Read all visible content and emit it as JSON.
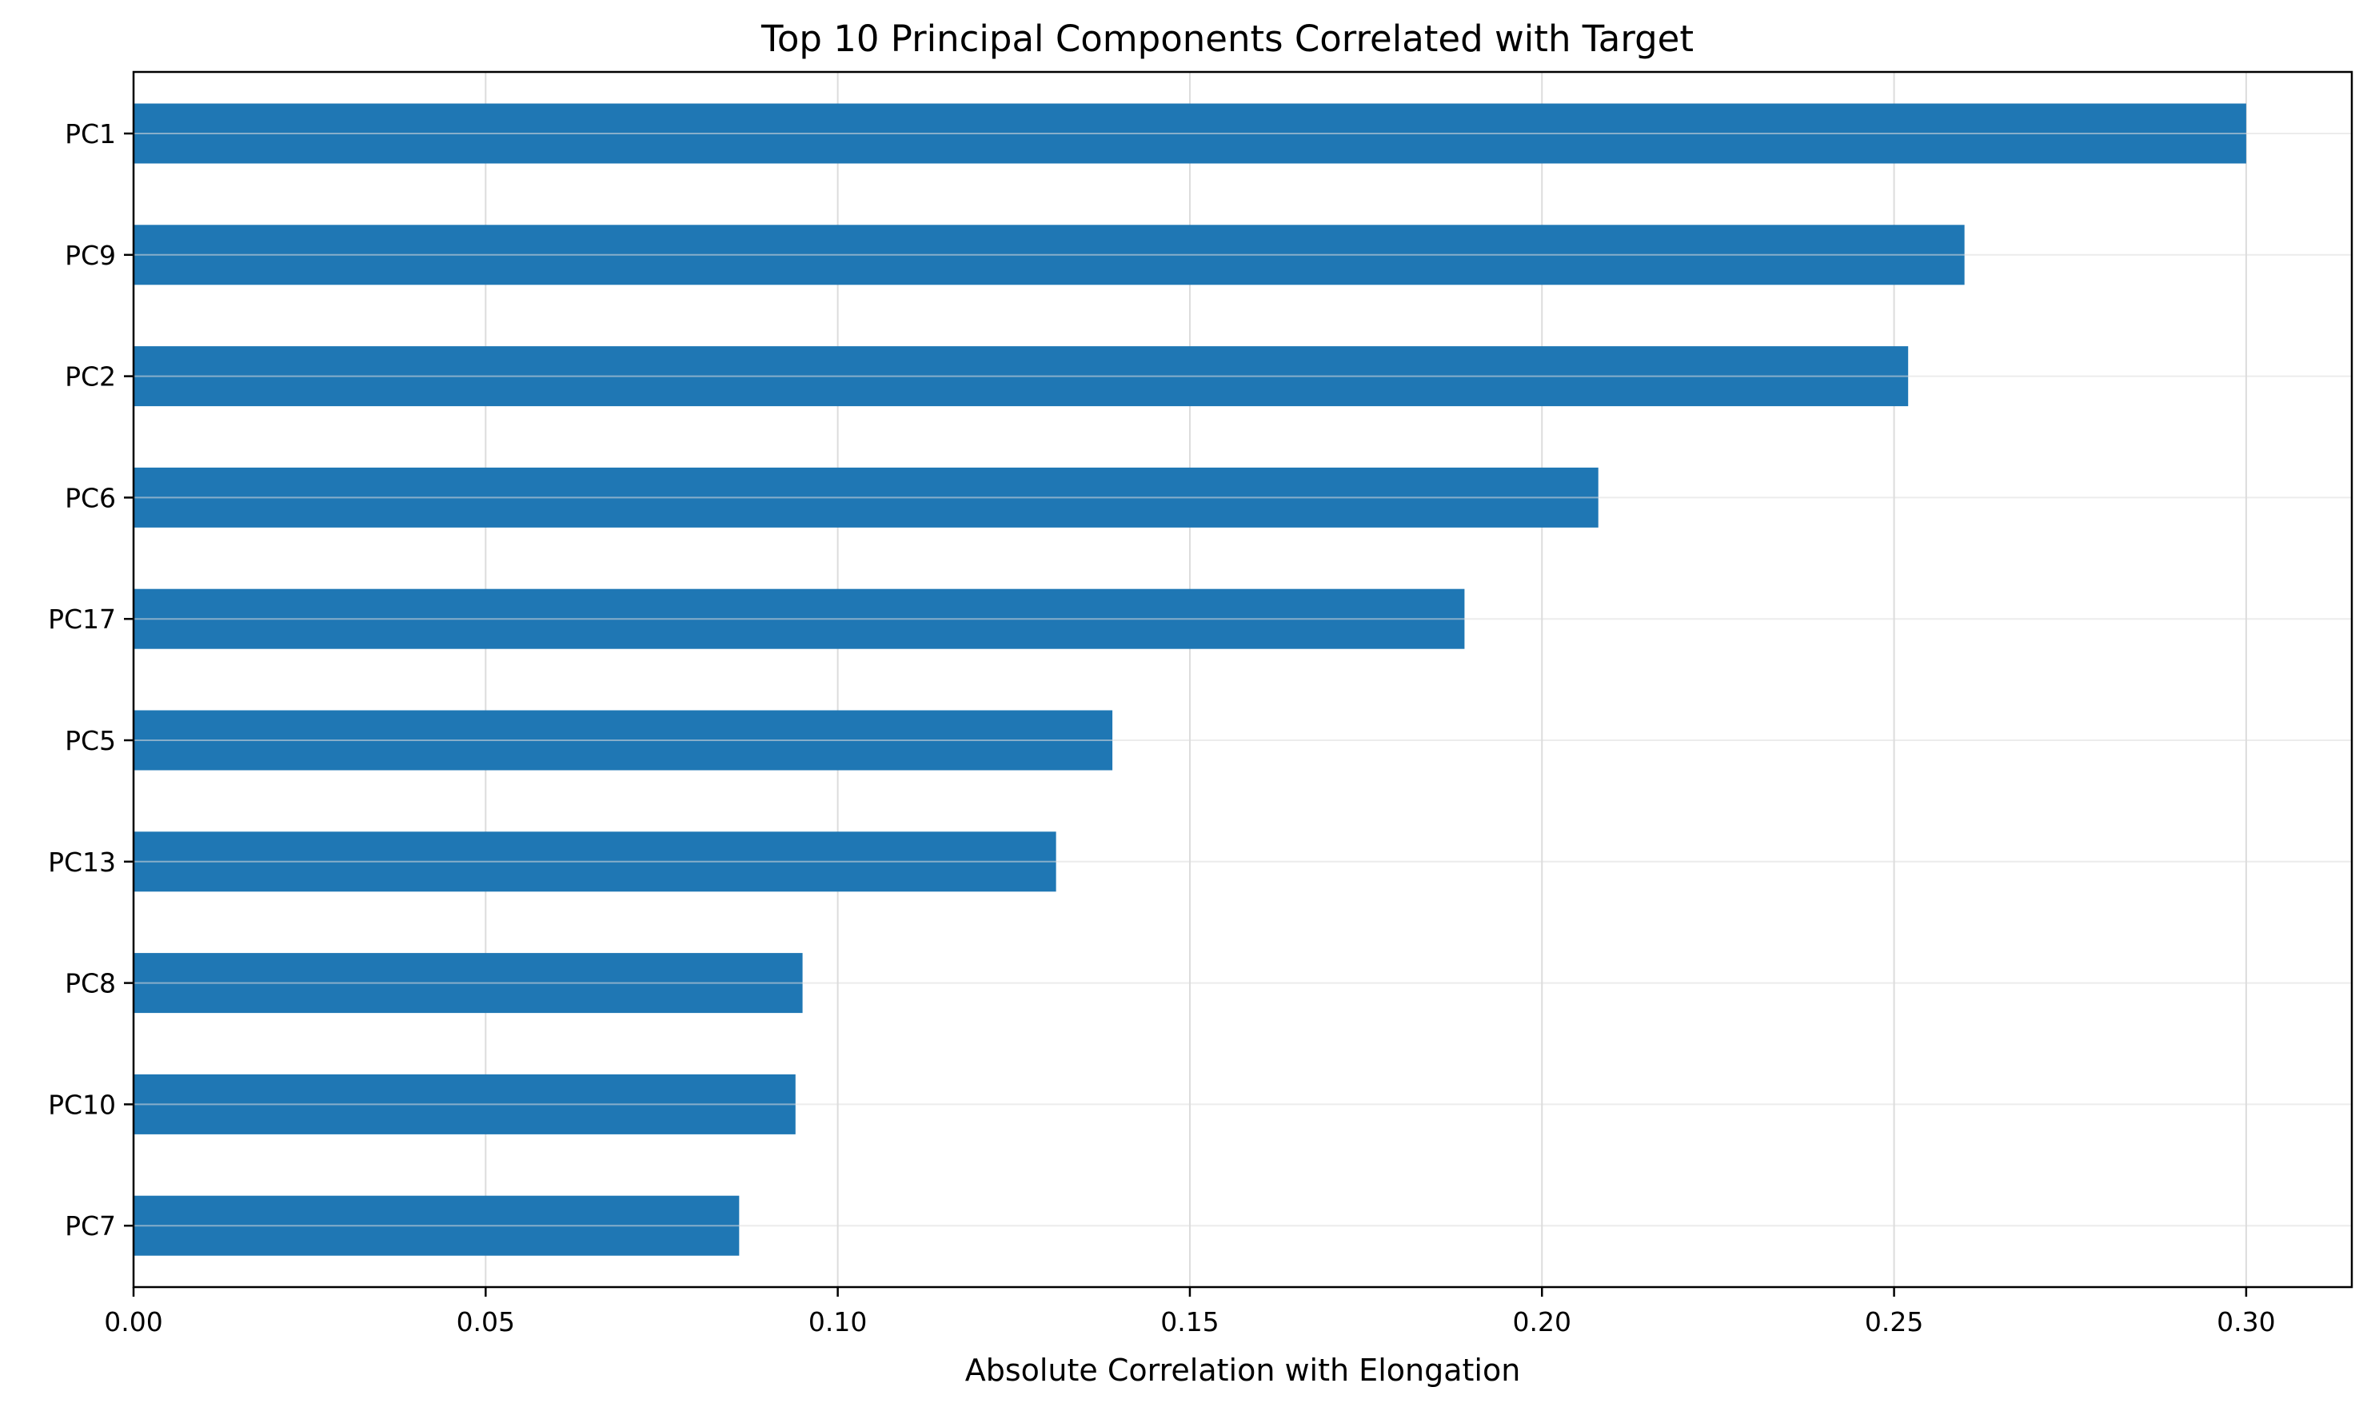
{
  "chart_data": {
    "type": "bar",
    "orientation": "horizontal",
    "title": "Top 10 Principal Components Correlated with Target",
    "xlabel": "Absolute Correlation with Elongation",
    "ylabel": "",
    "categories": [
      "PC1",
      "PC9",
      "PC2",
      "PC6",
      "PC17",
      "PC5",
      "PC13",
      "PC8",
      "PC10",
      "PC7"
    ],
    "values": [
      0.3,
      0.26,
      0.252,
      0.208,
      0.189,
      0.139,
      0.131,
      0.095,
      0.094,
      0.086
    ],
    "xlim": [
      0,
      0.315
    ],
    "xticks": [
      0.0,
      0.05,
      0.1,
      0.15,
      0.2,
      0.25,
      0.3
    ],
    "xtick_labels": [
      "0.00",
      "0.05",
      "0.10",
      "0.15",
      "0.20",
      "0.25",
      "0.30"
    ],
    "grid": true,
    "legend": "none",
    "bar_color": "#1f77b4",
    "grid_color": "#dcdcdc"
  }
}
